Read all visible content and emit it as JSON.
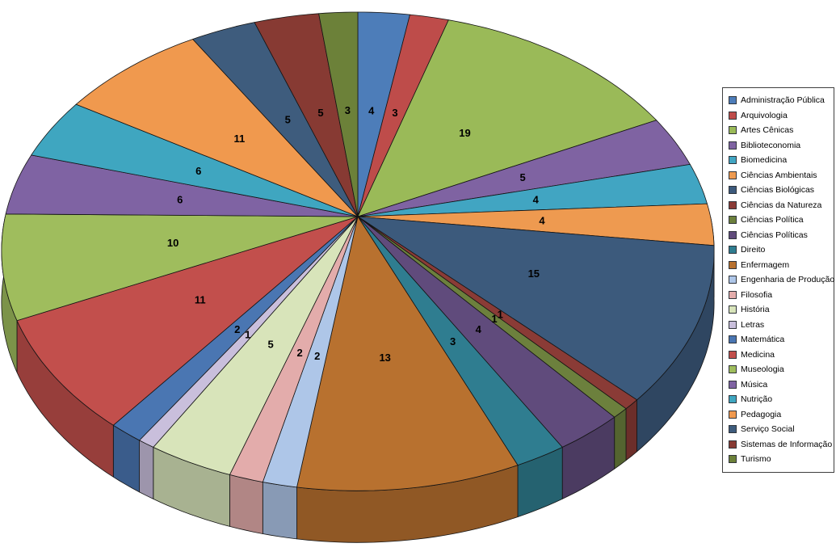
{
  "chart_data": {
    "type": "pie",
    "style": "3d",
    "title": "",
    "start_angle_deg": 0,
    "direction": "clockwise",
    "total": 145,
    "legend_position": "right",
    "data_label_format": "value",
    "background_color": "#FFFFFF",
    "legend_border_color": "#3F3F3F",
    "categories": [
      "Administração Pública",
      "Arquivologia",
      "Artes Cênicas",
      "Biblioteconomia",
      "Biomedicina",
      "Ciências Ambientais",
      "Ciências Biológicas",
      "Ciências da Natureza",
      "Ciências Política",
      "Ciências Políticas",
      "Direito",
      "Enfermagem",
      "Engenharia de Produção",
      "Filosofia",
      "História",
      "Letras",
      "Matemática",
      "Medicina",
      "Museologia",
      "Música",
      "Nutrição",
      "Pedagogia",
      "Serviço Social",
      "Sistemas de Informação",
      "Turismo"
    ],
    "values": [
      4,
      3,
      19,
      5,
      4,
      4,
      15,
      1,
      1,
      4,
      3,
      13,
      2,
      2,
      5,
      1,
      2,
      11,
      10,
      6,
      6,
      11,
      5,
      5,
      3
    ],
    "colors": [
      "#4D7DB9",
      "#BE4C4A",
      "#9ABA58",
      "#7F63A2",
      "#41A5C2",
      "#EE9A50",
      "#3C5A7C",
      "#8A3B36",
      "#6C803D",
      "#604B7C",
      "#2F7D90",
      "#B8712F",
      "#AEC6E8",
      "#E3ACAB",
      "#D8E4BA",
      "#C9BFDC",
      "#4A76B2",
      "#C24F4C",
      "#9FBD5D",
      "#7F63A3",
      "#3FA6C0",
      "#F0994E",
      "#3E5C7D",
      "#873A33",
      "#6C8139"
    ]
  }
}
